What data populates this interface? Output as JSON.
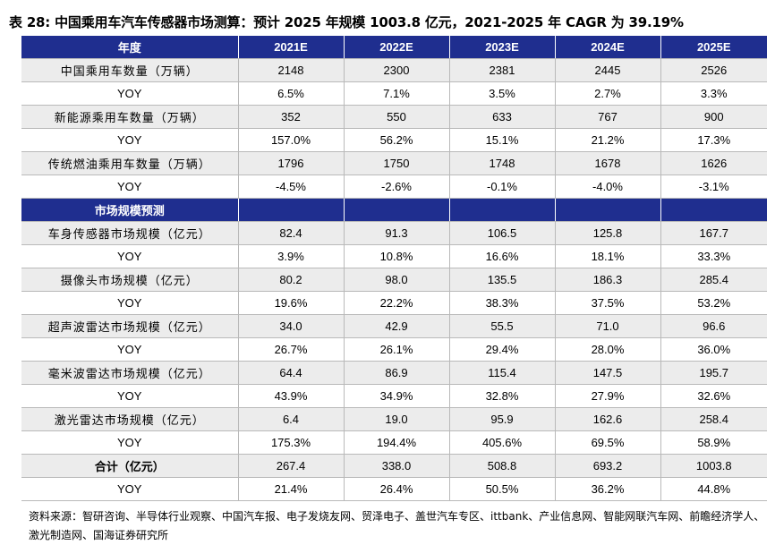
{
  "title": "表 28:  中国乘用车汽车传感器市场测算：预计 2025 年规模 1003.8 亿元，2021-2025 年 CAGR 为 39.19%",
  "header": {
    "label": "年度",
    "years": [
      "2021E",
      "2022E",
      "2023E",
      "2024E",
      "2025E"
    ]
  },
  "section": {
    "label": "市场规模预测"
  },
  "rows_top": [
    {
      "label": "中国乘用车数量（万辆）",
      "values": [
        "2148",
        "2300",
        "2381",
        "2445",
        "2526"
      ]
    },
    {
      "label": "YOY",
      "values": [
        "6.5%",
        "7.1%",
        "3.5%",
        "2.7%",
        "3.3%"
      ]
    },
    {
      "label": "新能源乘用车数量（万辆）",
      "values": [
        "352",
        "550",
        "633",
        "767",
        "900"
      ]
    },
    {
      "label": "YOY",
      "values": [
        "157.0%",
        "56.2%",
        "15.1%",
        "21.2%",
        "17.3%"
      ]
    },
    {
      "label": "传统燃油乘用车数量（万辆）",
      "values": [
        "1796",
        "1750",
        "1748",
        "1678",
        "1626"
      ]
    },
    {
      "label": "YOY",
      "values": [
        "-4.5%",
        "-2.6%",
        "-0.1%",
        "-4.0%",
        "-3.1%"
      ]
    }
  ],
  "rows_bottom": [
    {
      "label": "车身传感器市场规模（亿元）",
      "values": [
        "82.4",
        "91.3",
        "106.5",
        "125.8",
        "167.7"
      ]
    },
    {
      "label": "YOY",
      "values": [
        "3.9%",
        "10.8%",
        "16.6%",
        "18.1%",
        "33.3%"
      ]
    },
    {
      "label": "摄像头市场规模（亿元）",
      "values": [
        "80.2",
        "98.0",
        "135.5",
        "186.3",
        "285.4"
      ]
    },
    {
      "label": "YOY",
      "values": [
        "19.6%",
        "22.2%",
        "38.3%",
        "37.5%",
        "53.2%"
      ]
    },
    {
      "label": "超声波雷达市场规模（亿元）",
      "values": [
        "34.0",
        "42.9",
        "55.5",
        "71.0",
        "96.6"
      ]
    },
    {
      "label": "YOY",
      "values": [
        "26.7%",
        "26.1%",
        "29.4%",
        "28.0%",
        "36.0%"
      ]
    },
    {
      "label": "毫米波雷达市场规模（亿元）",
      "values": [
        "64.4",
        "86.9",
        "115.4",
        "147.5",
        "195.7"
      ]
    },
    {
      "label": "YOY",
      "values": [
        "43.9%",
        "34.9%",
        "32.8%",
        "27.9%",
        "32.6%"
      ]
    },
    {
      "label": "激光雷达市场规模（亿元）",
      "values": [
        "6.4",
        "19.0",
        "95.9",
        "162.6",
        "258.4"
      ]
    },
    {
      "label": "YOY",
      "values": [
        "175.3%",
        "194.4%",
        "405.6%",
        "69.5%",
        "58.9%"
      ]
    },
    {
      "label": "合计（亿元）",
      "values": [
        "267.4",
        "338.0",
        "508.8",
        "693.2",
        "1003.8"
      ]
    },
    {
      "label": "YOY",
      "values": [
        "21.4%",
        "26.4%",
        "50.5%",
        "36.2%",
        "44.8%"
      ]
    }
  ],
  "source": "资料来源：智研咨询、半导体行业观察、中国汽车报、电子发烧友网、贸泽电子、盖世汽车专区、ittbank、产业信息网、智能网联汽车网、前瞻经济学人、激光制造网、国海证券研究所"
}
